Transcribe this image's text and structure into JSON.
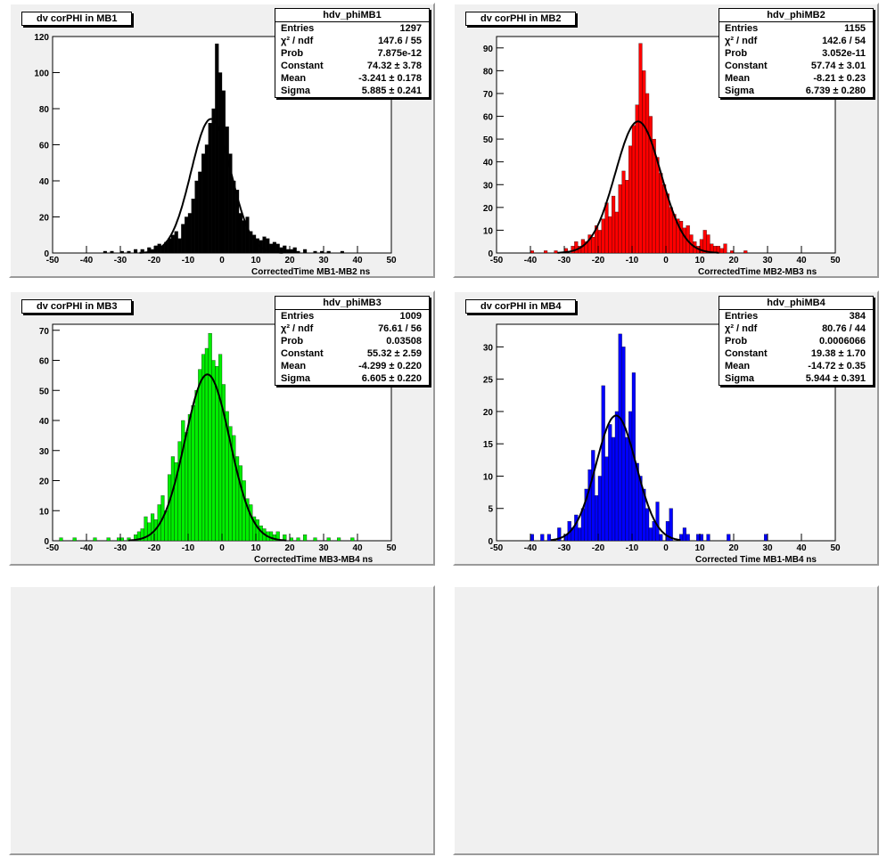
{
  "chart_data": [
    {
      "type": "histogram",
      "name": "hdv_phiMB1",
      "title": "dv corPHI in MB1",
      "xlabel": "CorrectedTime MB1-MB2   ns",
      "xlim": [
        -50,
        50
      ],
      "ylim": [
        0,
        120
      ],
      "xticks": [
        -50,
        -40,
        -30,
        -20,
        -10,
        0,
        10,
        20,
        30,
        40,
        50
      ],
      "yticks": [
        0,
        20,
        40,
        60,
        80,
        100,
        120
      ],
      "color": "#000000",
      "stats": [
        [
          "Entries",
          "1297"
        ],
        [
          "χ² / ndf",
          "147.6 / 55"
        ],
        [
          "Prob",
          "7.875e-12"
        ],
        [
          "Constant",
          "74.32 ± 3.78"
        ],
        [
          "Mean",
          "-3.241 ± 0.178"
        ],
        [
          "Sigma",
          "5.885 ± 0.241"
        ]
      ],
      "fit": {
        "constant": 74.32,
        "mean": -3.241,
        "sigma": 5.885
      },
      "bins": [
        [
          -35,
          1
        ],
        [
          -33,
          1
        ],
        [
          -30,
          1
        ],
        [
          -28,
          1
        ],
        [
          -26,
          2
        ],
        [
          -24,
          2
        ],
        [
          -22,
          3
        ],
        [
          -21,
          2
        ],
        [
          -20,
          4
        ],
        [
          -19,
          5
        ],
        [
          -18,
          4
        ],
        [
          -17,
          6
        ],
        [
          -16,
          8
        ],
        [
          -15,
          10
        ],
        [
          -14,
          12
        ],
        [
          -13,
          8
        ],
        [
          -12,
          16
        ],
        [
          -11,
          20
        ],
        [
          -10,
          22
        ],
        [
          -9,
          30
        ],
        [
          -8,
          40
        ],
        [
          -7,
          45
        ],
        [
          -6,
          55
        ],
        [
          -5,
          60
        ],
        [
          -4,
          72
        ],
        [
          -3,
          80
        ],
        [
          -2,
          116
        ],
        [
          -1,
          100
        ],
        [
          0,
          90
        ],
        [
          1,
          70
        ],
        [
          2,
          55
        ],
        [
          3,
          40
        ],
        [
          4,
          35
        ],
        [
          5,
          22
        ],
        [
          6,
          18
        ],
        [
          7,
          20
        ],
        [
          8,
          12
        ],
        [
          9,
          10
        ],
        [
          10,
          8
        ],
        [
          11,
          7
        ],
        [
          12,
          9
        ],
        [
          13,
          8
        ],
        [
          14,
          5
        ],
        [
          15,
          6
        ],
        [
          16,
          5
        ],
        [
          17,
          3
        ],
        [
          18,
          4
        ],
        [
          19,
          2
        ],
        [
          20,
          2
        ],
        [
          21,
          3
        ],
        [
          22,
          1
        ],
        [
          24,
          2
        ],
        [
          27,
          1
        ],
        [
          29,
          1
        ],
        [
          31,
          1
        ],
        [
          35,
          1
        ]
      ]
    },
    {
      "type": "histogram",
      "name": "hdv_phiMB2",
      "title": "dv corPHI in MB2",
      "xlabel": "CorrectedTime MB2-MB3   ns",
      "xlim": [
        -50,
        50
      ],
      "ylim": [
        0,
        95
      ],
      "xticks": [
        -50,
        -40,
        -30,
        -20,
        -10,
        0,
        10,
        20,
        30,
        40,
        50
      ],
      "yticks": [
        0,
        10,
        20,
        30,
        40,
        50,
        60,
        70,
        80,
        90
      ],
      "color": "#ff0000",
      "stats": [
        [
          "Entries",
          "1155"
        ],
        [
          "χ² / ndf",
          "142.6 / 54"
        ],
        [
          "Prob",
          "3.052e-11"
        ],
        [
          "Constant",
          "57.74 ± 3.01"
        ],
        [
          "Mean",
          "-8.21 ± 0.23"
        ],
        [
          "Sigma",
          "6.739 ± 0.280"
        ]
      ],
      "fit": {
        "constant": 57.74,
        "mean": -8.21,
        "sigma": 6.739
      },
      "bins": [
        [
          -40,
          1
        ],
        [
          -36,
          1
        ],
        [
          -33,
          1
        ],
        [
          -30,
          2
        ],
        [
          -28,
          3
        ],
        [
          -27,
          5
        ],
        [
          -26,
          3
        ],
        [
          -25,
          6
        ],
        [
          -24,
          5
        ],
        [
          -23,
          8
        ],
        [
          -22,
          7
        ],
        [
          -21,
          12
        ],
        [
          -20,
          10
        ],
        [
          -19,
          15
        ],
        [
          -18,
          22
        ],
        [
          -17,
          16
        ],
        [
          -16,
          25
        ],
        [
          -15,
          18
        ],
        [
          -14,
          30
        ],
        [
          -13,
          36
        ],
        [
          -12,
          32
        ],
        [
          -11,
          47
        ],
        [
          -10,
          56
        ],
        [
          -9,
          65
        ],
        [
          -8,
          92
        ],
        [
          -7,
          80
        ],
        [
          -6,
          70
        ],
        [
          -5,
          60
        ],
        [
          -4,
          50
        ],
        [
          -3,
          42
        ],
        [
          -2,
          35
        ],
        [
          -1,
          30
        ],
        [
          0,
          26
        ],
        [
          1,
          20
        ],
        [
          2,
          17
        ],
        [
          3,
          15
        ],
        [
          4,
          14
        ],
        [
          5,
          11
        ],
        [
          6,
          12
        ],
        [
          7,
          8
        ],
        [
          8,
          5
        ],
        [
          9,
          3
        ],
        [
          10,
          6
        ],
        [
          11,
          10
        ],
        [
          12,
          8
        ],
        [
          13,
          4
        ],
        [
          14,
          3
        ],
        [
          15,
          3
        ],
        [
          16,
          2
        ],
        [
          17,
          4
        ],
        [
          19,
          1
        ],
        [
          23,
          1
        ]
      ]
    },
    {
      "type": "histogram",
      "name": "hdv_phiMB3",
      "title": "dv corPHI in MB3",
      "xlabel": "CorrectedTime MB3-MB4   ns",
      "xlim": [
        -50,
        50
      ],
      "ylim": [
        0,
        72
      ],
      "xticks": [
        -50,
        -40,
        -30,
        -20,
        -10,
        0,
        10,
        20,
        30,
        40,
        50
      ],
      "yticks": [
        0,
        10,
        20,
        30,
        40,
        50,
        60,
        70
      ],
      "color": "#00ee00",
      "stats": [
        [
          "Entries",
          "1009"
        ],
        [
          "χ² / ndf",
          "76.61 / 56"
        ],
        [
          "Prob",
          "0.03508"
        ],
        [
          "Constant",
          "55.32 ± 2.59"
        ],
        [
          "Mean",
          "-4.299 ± 0.220"
        ],
        [
          "Sigma",
          "6.605 ± 0.220"
        ]
      ],
      "fit": {
        "constant": 55.32,
        "mean": -4.299,
        "sigma": 6.605
      },
      "bins": [
        [
          -48,
          1
        ],
        [
          -44,
          1
        ],
        [
          -38,
          1
        ],
        [
          -34,
          1
        ],
        [
          -31,
          1
        ],
        [
          -30,
          1
        ],
        [
          -28,
          1
        ],
        [
          -26,
          2
        ],
        [
          -25,
          3
        ],
        [
          -24,
          4
        ],
        [
          -23,
          8
        ],
        [
          -22,
          6
        ],
        [
          -21,
          9
        ],
        [
          -20,
          7
        ],
        [
          -19,
          12
        ],
        [
          -18,
          15
        ],
        [
          -17,
          10
        ],
        [
          -16,
          22
        ],
        [
          -15,
          28
        ],
        [
          -14,
          26
        ],
        [
          -13,
          33
        ],
        [
          -12,
          40
        ],
        [
          -11,
          36
        ],
        [
          -10,
          42
        ],
        [
          -9,
          45
        ],
        [
          -8,
          50
        ],
        [
          -7,
          57
        ],
        [
          -6,
          62
        ],
        [
          -5,
          64
        ],
        [
          -4,
          69
        ],
        [
          -3,
          60
        ],
        [
          -2,
          58
        ],
        [
          -1,
          62
        ],
        [
          0,
          52
        ],
        [
          1,
          43
        ],
        [
          2,
          38
        ],
        [
          3,
          35
        ],
        [
          4,
          28
        ],
        [
          5,
          25
        ],
        [
          6,
          20
        ],
        [
          7,
          14
        ],
        [
          8,
          12
        ],
        [
          9,
          8
        ],
        [
          10,
          7
        ],
        [
          11,
          5
        ],
        [
          12,
          4
        ],
        [
          13,
          3
        ],
        [
          14,
          3
        ],
        [
          15,
          2
        ],
        [
          16,
          3
        ],
        [
          18,
          2
        ],
        [
          20,
          1
        ],
        [
          22,
          1
        ],
        [
          24,
          2
        ],
        [
          27,
          1
        ],
        [
          31,
          1
        ],
        [
          34,
          1
        ],
        [
          38,
          1
        ]
      ]
    },
    {
      "type": "histogram",
      "name": "hdv_phiMB4",
      "title": "dv corPHI in MB4",
      "xlabel": "Corrected Time MB1-MB4   ns",
      "xlim": [
        -50,
        50
      ],
      "ylim": [
        0,
        33.5
      ],
      "xticks": [
        -50,
        -40,
        -30,
        -20,
        -10,
        0,
        10,
        20,
        30,
        40,
        50
      ],
      "yticks": [
        0,
        5,
        10,
        15,
        20,
        25,
        30
      ],
      "color": "#0000ff",
      "stats": [
        [
          "Entries",
          "384"
        ],
        [
          "χ² / ndf",
          "80.76 / 44"
        ],
        [
          "Prob",
          "0.0006066"
        ],
        [
          "Constant",
          "19.38 ± 1.70"
        ],
        [
          "Mean",
          "-14.72 ± 0.35"
        ],
        [
          "Sigma",
          "5.944 ± 0.391"
        ]
      ],
      "fit": {
        "constant": 19.38,
        "mean": -14.72,
        "sigma": 5.944
      },
      "bins": [
        [
          -40,
          1
        ],
        [
          -37,
          1
        ],
        [
          -35,
          1
        ],
        [
          -32,
          2
        ],
        [
          -30,
          1
        ],
        [
          -29,
          3
        ],
        [
          -28,
          2
        ],
        [
          -27,
          4
        ],
        [
          -26,
          2
        ],
        [
          -25,
          5
        ],
        [
          -24,
          8
        ],
        [
          -23,
          11
        ],
        [
          -22,
          14
        ],
        [
          -21,
          7
        ],
        [
          -20,
          10
        ],
        [
          -19,
          24
        ],
        [
          -18,
          13
        ],
        [
          -17,
          18
        ],
        [
          -16,
          16
        ],
        [
          -15,
          20
        ],
        [
          -14,
          32
        ],
        [
          -13,
          30
        ],
        [
          -12,
          16
        ],
        [
          -11,
          20
        ],
        [
          -10,
          26
        ],
        [
          -9,
          12
        ],
        [
          -8,
          10
        ],
        [
          -7,
          8
        ],
        [
          -6,
          5
        ],
        [
          -5,
          2
        ],
        [
          -4,
          3
        ],
        [
          -3,
          6
        ],
        [
          -2,
          1
        ],
        [
          0,
          3
        ],
        [
          1,
          5
        ],
        [
          4,
          1
        ],
        [
          5,
          2
        ],
        [
          6,
          1
        ],
        [
          9,
          1
        ],
        [
          10,
          1
        ],
        [
          12,
          1
        ],
        [
          18,
          1
        ],
        [
          29,
          1
        ]
      ]
    }
  ]
}
